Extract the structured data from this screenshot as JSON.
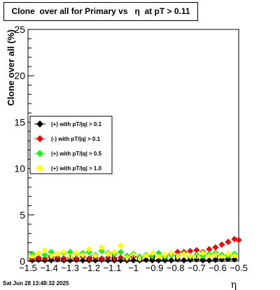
{
  "chart_data": {
    "type": "scatter",
    "title": "Clone  over all for Primary vs   η  at pT > 0.11",
    "xlabel": "η",
    "ylabel": "Clone  over all (%)",
    "xlim": [
      -1.5,
      -0.5
    ],
    "ylim": [
      0,
      25
    ],
    "x_ticks": [
      -1.5,
      -1.4,
      -1.3,
      -1.2,
      -1.1,
      -1,
      -0.9,
      -0.8,
      -0.7,
      -0.6,
      -0.5
    ],
    "x_tick_labels": [
      "−1.5",
      "−1.4",
      "−1.3",
      "−1.2",
      "−1.1",
      "−1",
      "−0.9",
      "−0.8",
      "−0.7",
      "−0.6",
      "−0.5"
    ],
    "y_ticks": [
      0,
      5,
      10,
      15,
      20,
      25
    ],
    "y_tick_labels": [
      "0",
      "5",
      "10",
      "15",
      "20",
      "25"
    ],
    "grid": false,
    "legend_position": "left-middle",
    "series": [
      {
        "name": "(+) with pT/|q| > 0.1",
        "color": "#000000",
        "marker": "diamond",
        "x": [
          -1.48,
          -1.45,
          -1.42,
          -1.39,
          -1.36,
          -1.33,
          -1.3,
          -1.27,
          -1.24,
          -1.21,
          -1.18,
          -1.15,
          -1.12,
          -1.09,
          -1.06,
          -1.03,
          -1.0,
          -0.97,
          -0.94,
          -0.91,
          -0.88,
          -0.85,
          -0.82,
          -0.79,
          -0.76,
          -0.73,
          -0.7,
          -0.67,
          -0.64,
          -0.61,
          -0.58,
          -0.55,
          -0.52
        ],
        "y": [
          0.1,
          0.15,
          0.1,
          0.1,
          0.2,
          0.1,
          0.1,
          0.15,
          0.1,
          0.1,
          0.1,
          0.15,
          0.1,
          0.1,
          0.1,
          0.1,
          0.1,
          0.1,
          0.15,
          0.1,
          0.1,
          0.1,
          0.1,
          0.2,
          0.1,
          0.15,
          0.2,
          0.1,
          0.1,
          0.15,
          0.2,
          0.25,
          0.2
        ]
      },
      {
        "name": "(-) with pT/|q| > 0.1",
        "color": "#ff0000",
        "marker": "diamond",
        "x": [
          -1.48,
          -1.45,
          -1.42,
          -1.39,
          -1.36,
          -1.33,
          -1.3,
          -1.27,
          -1.24,
          -1.21,
          -1.18,
          -1.15,
          -1.12,
          -1.09,
          -1.06,
          -1.03,
          -1.0,
          -0.97,
          -0.94,
          -0.91,
          -0.88,
          -0.85,
          -0.82,
          -0.79,
          -0.76,
          -0.73,
          -0.7,
          -0.67,
          -0.64,
          -0.61,
          -0.58,
          -0.55,
          -0.52,
          -0.5
        ],
        "y": [
          0.3,
          0.4,
          0.3,
          0.5,
          0.4,
          0.3,
          0.4,
          0.3,
          0.5,
          0.3,
          0.4,
          0.3,
          0.4,
          0.3,
          0.4,
          0.3,
          0.5,
          0.4,
          0.6,
          0.5,
          0.5,
          0.6,
          0.8,
          1.0,
          1.0,
          1.1,
          1.2,
          1.0,
          1.3,
          1.5,
          1.8,
          2.1,
          2.4,
          2.3
        ]
      },
      {
        "name": "(+) with pT/|q| > 0.5",
        "color": "#00ff00",
        "marker": "diamond",
        "x": [
          -1.48,
          -1.45,
          -1.42,
          -1.39,
          -1.36,
          -1.33,
          -1.3,
          -1.27,
          -1.24,
          -1.21,
          -1.18,
          -1.15,
          -1.12,
          -1.09,
          -1.06,
          -1.03,
          -1.0,
          -0.97,
          -0.94,
          -0.91,
          -0.88,
          -0.85,
          -0.82,
          -0.79,
          -0.76,
          -0.73,
          -0.7,
          -0.67,
          -0.64,
          -0.61,
          -0.58,
          -0.55,
          -0.52
        ],
        "y": [
          0.8,
          0.9,
          0.7,
          1.0,
          0.8,
          0.9,
          1.0,
          0.8,
          0.9,
          1.0,
          0.7,
          1.1,
          0.9,
          0.8,
          1.0,
          0.6,
          0.8,
          0.5,
          0.7,
          0.6,
          0.9,
          0.5,
          0.7,
          0.6,
          0.8,
          0.5,
          0.7,
          0.6,
          0.8,
          0.9,
          0.7,
          0.6,
          0.8
        ]
      },
      {
        "name": "(+) with pT/|q| > 1.0",
        "color": "#ffff00",
        "marker": "diamond",
        "x": [
          -1.48,
          -1.45,
          -1.42,
          -1.39,
          -1.36,
          -1.33,
          -1.3,
          -1.27,
          -1.24,
          -1.21,
          -1.18,
          -1.15,
          -1.12,
          -1.09,
          -1.06,
          -1.03,
          -1.0,
          -0.97,
          -0.94,
          -0.91,
          -0.88,
          -0.85,
          -0.82,
          -0.79,
          -0.76,
          -0.73,
          -0.7,
          -0.67,
          -0.64,
          -0.61,
          -0.58,
          -0.55,
          -0.52
        ],
        "y": [
          0.5,
          0.9,
          1.2,
          0.6,
          0.8,
          1.0,
          0.5,
          0.9,
          0.7,
          1.3,
          0.6,
          1.5,
          0.8,
          1.0,
          1.7,
          0.4,
          0.7,
          0.3,
          0.6,
          0.9,
          0.5,
          0.7,
          0.9,
          0.5,
          0.8,
          0.6,
          0.5,
          0.9,
          0.6,
          0.7,
          0.5,
          0.8,
          0.6
        ]
      }
    ]
  },
  "footer": {
    "timestamp": "Sat Jun 28 13:48:32 2025"
  }
}
